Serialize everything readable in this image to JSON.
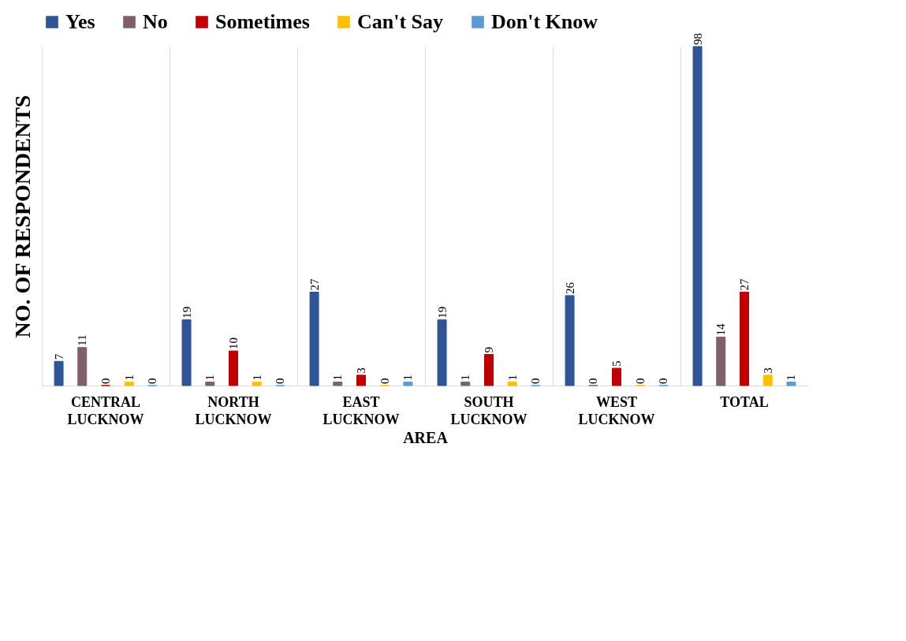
{
  "chart_data": {
    "type": "bar",
    "xlabel": "AREA",
    "ylabel": "NO. OF RESPONDENTS",
    "categories": [
      "CENTRAL LUCKNOW",
      "NORTH LUCKNOW",
      "EAST LUCKNOW",
      "SOUTH LUCKNOW",
      "WEST LUCKNOW",
      "TOTAL"
    ],
    "series": [
      {
        "name": "Yes",
        "color": "#2f5597",
        "values": [
          7,
          19,
          27,
          19,
          26,
          98
        ]
      },
      {
        "name": "No",
        "color": "#7f6069",
        "values": [
          11,
          1,
          1,
          1,
          0,
          14
        ]
      },
      {
        "name": "Sometimes",
        "color": "#c00000",
        "values": [
          0,
          10,
          3,
          9,
          5,
          27
        ]
      },
      {
        "name": "Can't Say",
        "color": "#ffc000",
        "values": [
          1,
          1,
          0,
          1,
          0,
          3
        ]
      },
      {
        "name": "Don't Know",
        "color": "#5b9bd5",
        "values": [
          0,
          0,
          1,
          0,
          0,
          1
        ]
      }
    ],
    "data_labels": true,
    "grid": "x",
    "legend": "top"
  }
}
